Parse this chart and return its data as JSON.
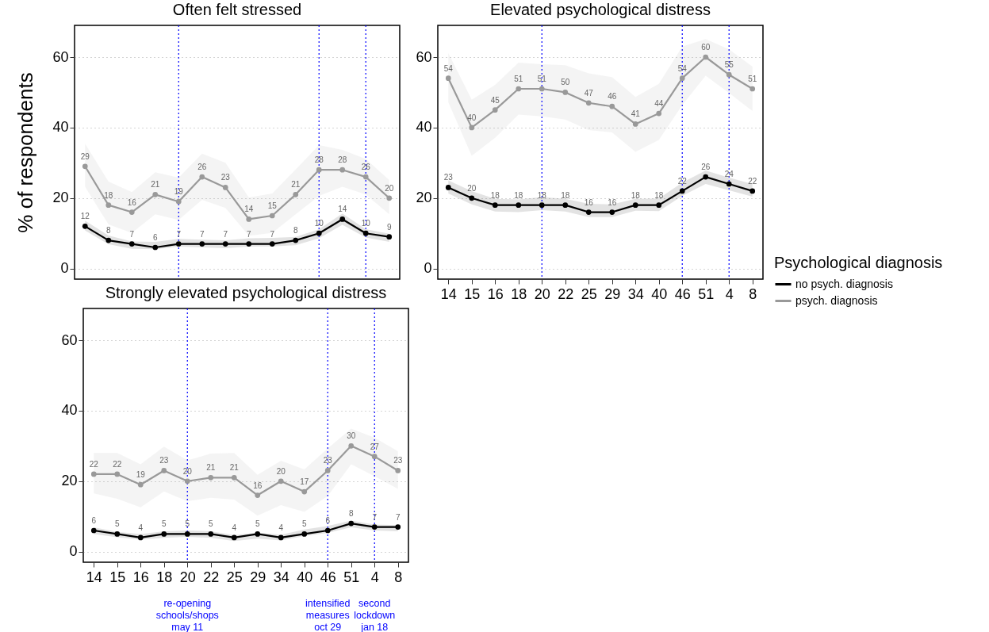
{
  "chart_data": [
    {
      "type": "line",
      "title": "Often felt stressed",
      "ylabel": "% of respondents",
      "categories": [
        "14",
        "15",
        "16",
        "18",
        "20",
        "22",
        "25",
        "29",
        "34",
        "40",
        "46",
        "51",
        "4",
        "8"
      ],
      "series": [
        {
          "color": "#000000",
          "values": [
            12,
            8,
            7,
            6,
            7,
            7,
            7,
            7,
            7,
            8,
            10,
            14,
            10,
            9
          ],
          "lower": [
            10.8,
            6.9,
            5.6,
            5.5,
            6.2,
            6.0,
            5.8,
            6.2,
            6.3,
            6.6,
            8.6,
            12.4,
            8.8,
            7.6
          ],
          "upper": [
            13.6,
            9.4,
            7.7,
            7.6,
            8.4,
            8.2,
            8.0,
            8.6,
            8.7,
            9.0,
            11.2,
            15.6,
            11.2,
            9.9
          ]
        },
        {
          "color": "#999999",
          "values": [
            29,
            18,
            16,
            21,
            19,
            26,
            23,
            14,
            15,
            21,
            28,
            28,
            26,
            20
          ],
          "lower": [
            23.2,
            12.5,
            10.1,
            15.4,
            13.8,
            19.5,
            17.2,
            9.3,
            10.1,
            15.4,
            20.6,
            23.2,
            21.0,
            15.4
          ],
          "upper": [
            35.4,
            24.7,
            21.7,
            27.3,
            25.8,
            32.6,
            30.0,
            20.2,
            21.3,
            28.1,
            35.0,
            33.7,
            31.1,
            25.1
          ]
        }
      ],
      "ylim": [
        -3,
        69
      ],
      "yticks": [
        0,
        20,
        40,
        60
      ],
      "grid": "y",
      "marker": "circle",
      "line_style": "solid",
      "data_labels": true,
      "tick_labels": "y",
      "ref_lines": [
        {
          "axis": "x",
          "value": "20",
          "color": "#0000ff",
          "line_style": "dotted"
        },
        {
          "axis": "x",
          "value": "46",
          "color": "#0000ff",
          "line_style": "dotted"
        },
        {
          "axis": "x",
          "value": "4",
          "color": "#0000ff",
          "line_style": "dotted"
        }
      ]
    },
    {
      "type": "line",
      "title": "Elevated psychological distress",
      "legend_title": "Psychological diagnosis",
      "legend": "right",
      "categories": [
        "14",
        "15",
        "16",
        "18",
        "20",
        "22",
        "25",
        "29",
        "34",
        "40",
        "46",
        "51",
        "4",
        "8"
      ],
      "series": [
        {
          "name": "no psych. diagnosis",
          "color": "#000000",
          "values": [
            23,
            20,
            18,
            18,
            18,
            18,
            16,
            16,
            18,
            18,
            22,
            26,
            24,
            22
          ],
          "lower": [
            21.3,
            18.2,
            16.2,
            16.0,
            16.6,
            16.2,
            14.6,
            14.6,
            16.4,
            16.3,
            20.6,
            24.0,
            22.2,
            20.4
          ],
          "upper": [
            25.0,
            22.0,
            19.8,
            19.6,
            20.3,
            19.8,
            18.4,
            18.2,
            19.8,
            19.9,
            24.4,
            27.8,
            25.8,
            24.0
          ]
        },
        {
          "name": "psych. diagnosis",
          "color": "#999999",
          "values": [
            54,
            40,
            45,
            51,
            51,
            50,
            47,
            46,
            41,
            44,
            54,
            60,
            55,
            51
          ],
          "lower": [
            47.2,
            32.0,
            37.1,
            43.7,
            43.2,
            42.3,
            39.3,
            38.6,
            33.1,
            36.5,
            46.4,
            54.7,
            49.8,
            44.7
          ],
          "upper": [
            61.1,
            47.9,
            52.1,
            58.4,
            58.0,
            57.7,
            55.4,
            54.3,
            48.7,
            52.4,
            63.0,
            65.1,
            62.2,
            57.3
          ]
        }
      ],
      "ylim": [
        -3,
        69
      ],
      "yticks": [
        0,
        20,
        40,
        60
      ],
      "grid": "y",
      "marker": "circle",
      "line_style": "solid",
      "data_labels": true,
      "ref_lines": [
        {
          "axis": "x",
          "value": "20",
          "color": "#0000ff",
          "line_style": "dotted"
        },
        {
          "axis": "x",
          "value": "46",
          "color": "#0000ff",
          "line_style": "dotted"
        },
        {
          "axis": "x",
          "value": "4",
          "color": "#0000ff",
          "line_style": "dotted"
        }
      ]
    },
    {
      "type": "line",
      "title": "Strongly elevated psychological distress",
      "categories": [
        "14",
        "15",
        "16",
        "18",
        "20",
        "22",
        "25",
        "29",
        "34",
        "40",
        "46",
        "51",
        "4",
        "8"
      ],
      "series": [
        {
          "color": "#000000",
          "values": [
            6,
            5,
            4,
            5,
            5,
            5,
            4,
            5,
            4,
            5,
            6,
            8,
            7,
            7
          ],
          "lower": [
            5.0,
            4.1,
            3.4,
            3.9,
            4.2,
            3.9,
            3.0,
            3.7,
            3.2,
            4.4,
            5.3,
            6.9,
            6.0,
            5.8
          ],
          "upper": [
            6.9,
            5.6,
            5.0,
            5.8,
            6.0,
            5.8,
            4.7,
            5.4,
            4.8,
            6.3,
            7.3,
            8.8,
            7.7,
            7.5
          ]
        },
        {
          "color": "#999999",
          "values": [
            22,
            22,
            19,
            23,
            20,
            21,
            21,
            16,
            20,
            17,
            23,
            30,
            27,
            23
          ],
          "lower": [
            16.5,
            15.0,
            12.6,
            17.1,
            14.3,
            15.3,
            14.8,
            10.2,
            13.2,
            11.3,
            15.8,
            24.8,
            21.4,
            17.8
          ],
          "upper": [
            28.0,
            28.0,
            24.8,
            29.8,
            25.9,
            27.8,
            28.0,
            21.8,
            25.8,
            23.3,
            29.3,
            34.9,
            32.3,
            28.5
          ]
        }
      ],
      "ylim": [
        -3,
        69
      ],
      "yticks": [
        0,
        20,
        40,
        60
      ],
      "grid": "y",
      "marker": "circle",
      "line_style": "solid",
      "data_labels": true,
      "ref_lines": [
        {
          "axis": "x",
          "value": "20",
          "label": "re-opening\nschools/shops\nmay 11",
          "color": "#0000ff",
          "line_style": "dotted"
        },
        {
          "axis": "x",
          "value": "46",
          "label": "intensified\nmeasures\noct 29",
          "color": "#0000ff",
          "line_style": "dotted"
        },
        {
          "axis": "x",
          "value": "4",
          "label": "second\nlockdown\njan 18",
          "color": "#0000ff",
          "line_style": "dotted"
        }
      ]
    }
  ]
}
